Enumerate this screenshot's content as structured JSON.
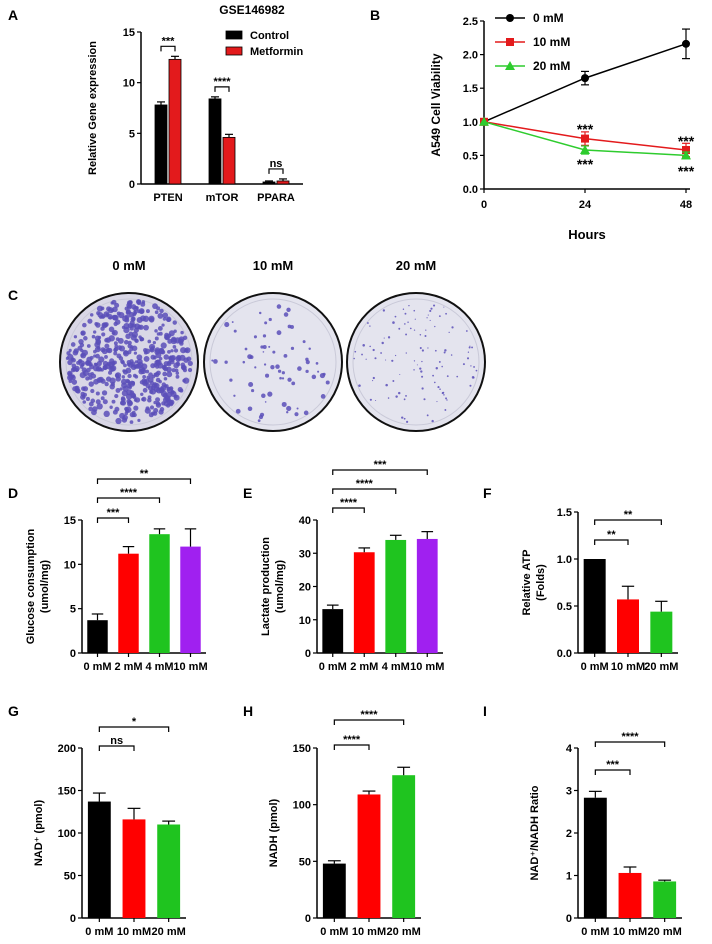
{
  "panel_letters": [
    "A",
    "B",
    "C",
    "D",
    "E",
    "F",
    "G",
    "H",
    "I"
  ],
  "plates": {
    "labels": [
      "0 mM",
      "10 mM",
      "20 mM"
    ],
    "colony_density": [
      "high",
      "low",
      "very low"
    ],
    "dye_color": "#5a4fb8"
  },
  "chart_data": [
    {
      "panel": "A",
      "type": "bar",
      "title": "GSE146982",
      "ylabel": "Relative Gene expression",
      "ylim": [
        0,
        15
      ],
      "yticks": [
        "0",
        "5",
        "10",
        "15"
      ],
      "categories": [
        "PTEN",
        "mTOR",
        "PPARA"
      ],
      "series": [
        {
          "name": "Control",
          "color": "#000000",
          "values": [
            7.8,
            8.4,
            0.2
          ],
          "errors": [
            0.3,
            0.2,
            0.1
          ]
        },
        {
          "name": "Metformin",
          "color": "#e31a1c",
          "values": [
            12.3,
            4.6,
            0.3
          ],
          "errors": [
            0.3,
            0.3,
            0.2
          ]
        }
      ],
      "legend_position": "top-right",
      "significance": [
        "***",
        "****",
        "ns"
      ]
    },
    {
      "panel": "B",
      "type": "line",
      "ylabel": "A549 Cell Viability",
      "xlabel": "Hours",
      "x": [
        0,
        24,
        48
      ],
      "xticks": [
        "0",
        "24",
        "48"
      ],
      "ylim": [
        0,
        2.5
      ],
      "yticks": [
        "0.0",
        "0.5",
        "1.0",
        "1.5",
        "2.0",
        "2.5"
      ],
      "series": [
        {
          "name": "0 mM",
          "color": "#000000",
          "marker": "circle",
          "values": [
            1.0,
            1.65,
            2.16
          ],
          "errors": [
            0,
            0.1,
            0.22
          ]
        },
        {
          "name": "10 mM",
          "color": "#e31a1c",
          "marker": "square",
          "values": [
            1.0,
            0.75,
            0.58
          ],
          "errors": [
            0,
            0.1,
            0.1
          ]
        },
        {
          "name": "20 mM",
          "color": "#2ecc2e",
          "marker": "triangle",
          "values": [
            1.0,
            0.58,
            0.5
          ],
          "errors": [
            0,
            0.06,
            0.05
          ]
        }
      ],
      "legend_position": "top-left",
      "significance_top": [
        "***",
        "***"
      ],
      "significance_bottom": [
        "***",
        "***"
      ]
    },
    {
      "panel": "D",
      "type": "bar",
      "ylabel_lines": [
        "Glucose consumption",
        "(umol/mg)"
      ],
      "ylim": [
        0,
        15
      ],
      "yticks": [
        "0",
        "5",
        "10",
        "15"
      ],
      "categories": [
        "0 mM",
        "2 mM",
        "4 mM",
        "10 mM"
      ],
      "values": [
        3.7,
        11.2,
        13.4,
        12.0
      ],
      "errors": [
        0.7,
        0.8,
        0.6,
        2.0
      ],
      "colors": [
        "#000000",
        "#ff0000",
        "#1fc41f",
        "#a020f0"
      ],
      "brackets": [
        {
          "from": 0,
          "to": 1,
          "label": "***"
        },
        {
          "from": 0,
          "to": 2,
          "label": "****"
        },
        {
          "from": 0,
          "to": 3,
          "label": "**"
        }
      ]
    },
    {
      "panel": "E",
      "type": "bar",
      "ylabel_lines": [
        "Lactate production",
        "(umol/mg)"
      ],
      "ylim": [
        0,
        40
      ],
      "yticks": [
        "0",
        "10",
        "20",
        "30",
        "40"
      ],
      "categories": [
        "0 mM",
        "2 mM",
        "4 mM",
        "10 mM"
      ],
      "values": [
        13.2,
        30.3,
        34.0,
        34.3
      ],
      "errors": [
        1.2,
        1.3,
        1.4,
        2.2
      ],
      "colors": [
        "#000000",
        "#ff0000",
        "#1fc41f",
        "#a020f0"
      ],
      "brackets": [
        {
          "from": 0,
          "to": 1,
          "label": "****"
        },
        {
          "from": 0,
          "to": 2,
          "label": "****"
        },
        {
          "from": 0,
          "to": 3,
          "label": "***"
        }
      ]
    },
    {
      "panel": "F",
      "type": "bar",
      "ylabel_lines": [
        "Relative ATP",
        "(Folds)"
      ],
      "ylim": [
        0,
        1.5
      ],
      "yticks": [
        "0.0",
        "0.5",
        "1.0",
        "1.5"
      ],
      "categories": [
        "0 mM",
        "10 mM",
        "20 mM"
      ],
      "values": [
        1.0,
        0.57,
        0.44
      ],
      "errors": [
        0,
        0.14,
        0.11
      ],
      "colors": [
        "#000000",
        "#ff0000",
        "#1fc41f"
      ],
      "brackets": [
        {
          "from": 0,
          "to": 1,
          "label": "**"
        },
        {
          "from": 0,
          "to": 2,
          "label": "**"
        }
      ]
    },
    {
      "panel": "G",
      "type": "bar",
      "ylabel_lines": [
        "NAD⁺ (pmol)"
      ],
      "ylim": [
        0,
        200
      ],
      "yticks": [
        "0",
        "50",
        "100",
        "150",
        "200"
      ],
      "categories": [
        "0 mM",
        "10 mM",
        "20 mM"
      ],
      "values": [
        137,
        116,
        110
      ],
      "errors": [
        10,
        13,
        4
      ],
      "colors": [
        "#000000",
        "#ff0000",
        "#1fc41f"
      ],
      "brackets": [
        {
          "from": 0,
          "to": 1,
          "label": "ns"
        },
        {
          "from": 0,
          "to": 2,
          "label": "*"
        }
      ]
    },
    {
      "panel": "H",
      "type": "bar",
      "ylabel_lines": [
        "NADH (pmol)"
      ],
      "ylim": [
        0,
        150
      ],
      "yticks": [
        "0",
        "50",
        "100",
        "150"
      ],
      "categories": [
        "0 mM",
        "10 mM",
        "20 mM"
      ],
      "values": [
        48,
        109,
        126
      ],
      "errors": [
        2.5,
        3,
        7
      ],
      "colors": [
        "#000000",
        "#ff0000",
        "#1fc41f"
      ],
      "brackets": [
        {
          "from": 0,
          "to": 1,
          "label": "****"
        },
        {
          "from": 0,
          "to": 2,
          "label": "****"
        }
      ]
    },
    {
      "panel": "I",
      "type": "bar",
      "ylabel_lines": [
        "NAD⁺/NADH Ratio"
      ],
      "ylim": [
        0,
        4
      ],
      "yticks": [
        "0",
        "1",
        "2",
        "3",
        "4"
      ],
      "categories": [
        "0 mM",
        "10 mM",
        "20 mM"
      ],
      "values": [
        2.83,
        1.06,
        0.86
      ],
      "errors": [
        0.15,
        0.14,
        0.03
      ],
      "colors": [
        "#000000",
        "#ff0000",
        "#1fc41f"
      ],
      "brackets": [
        {
          "from": 0,
          "to": 1,
          "label": "***"
        },
        {
          "from": 0,
          "to": 2,
          "label": "****"
        }
      ]
    }
  ]
}
